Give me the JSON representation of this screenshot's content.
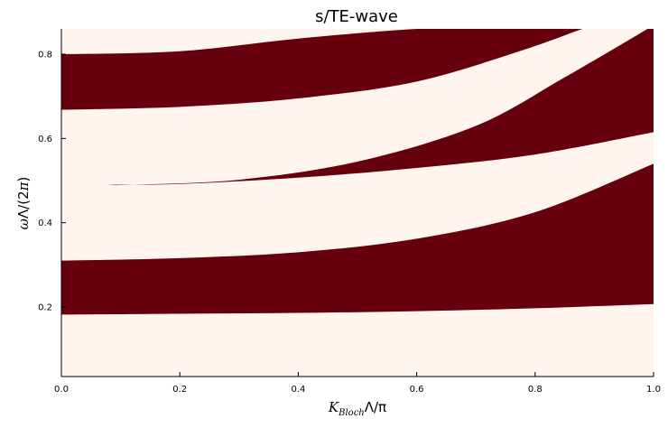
{
  "chart_data": {
    "type": "heatmap",
    "title": "s/TE-wave",
    "xlabel": {
      "main": "K",
      "sub": "Bloch",
      "tail": "Λ/π"
    },
    "ylabel": {
      "prefix": "ω",
      "rest": "Λ/(2",
      "pi": "π",
      "close": ")"
    },
    "xlim": [
      0.0,
      1.0
    ],
    "ylim": [
      0.035,
      0.86
    ],
    "xticks": [
      "0.0",
      "0.2",
      "0.4",
      "0.6",
      "0.8",
      "1.0"
    ],
    "xtick_values": [
      0.0,
      0.2,
      0.4,
      0.6,
      0.8,
      1.0
    ],
    "yticks": [
      "0.2",
      "0.4",
      "0.6",
      "0.8"
    ],
    "ytick_values": [
      0.2,
      0.4,
      0.6,
      0.8
    ],
    "colors": {
      "band": "#67000d",
      "gap": "#fff5ee"
    },
    "grid": false,
    "legend": "none",
    "bands": [
      {
        "name": "band-1",
        "lower": {
          "x": [
            0.0,
            0.2,
            0.4,
            0.6,
            0.8,
            1.0
          ],
          "y": [
            0.182,
            0.184,
            0.186,
            0.19,
            0.197,
            0.207
          ]
        },
        "upper": {
          "x": [
            0.0,
            0.2,
            0.4,
            0.6,
            0.8,
            1.0
          ],
          "y": [
            0.31,
            0.316,
            0.33,
            0.362,
            0.425,
            0.54
          ]
        }
      },
      {
        "name": "band-2",
        "lower": {
          "x": [
            0.075,
            0.2,
            0.4,
            0.6,
            0.8,
            1.0
          ],
          "y": [
            0.49,
            0.492,
            0.507,
            0.53,
            0.562,
            0.615
          ]
        },
        "upper": {
          "x": [
            0.075,
            0.12,
            0.3,
            0.5,
            0.7,
            0.85,
            0.99
          ],
          "y": [
            0.49,
            0.49,
            0.502,
            0.545,
            0.63,
            0.745,
            0.86
          ]
        }
      },
      {
        "name": "band-3",
        "lower": {
          "x": [
            0.0,
            0.2,
            0.4,
            0.6,
            0.78,
            0.88,
            0.89
          ],
          "y": [
            0.668,
            0.675,
            0.695,
            0.735,
            0.81,
            0.86,
            0.86
          ]
        },
        "upper": {
          "x": [
            0.0,
            0.2,
            0.4,
            0.6,
            0.7
          ],
          "y": [
            0.8,
            0.807,
            0.837,
            0.86,
            0.86
          ]
        }
      }
    ]
  }
}
